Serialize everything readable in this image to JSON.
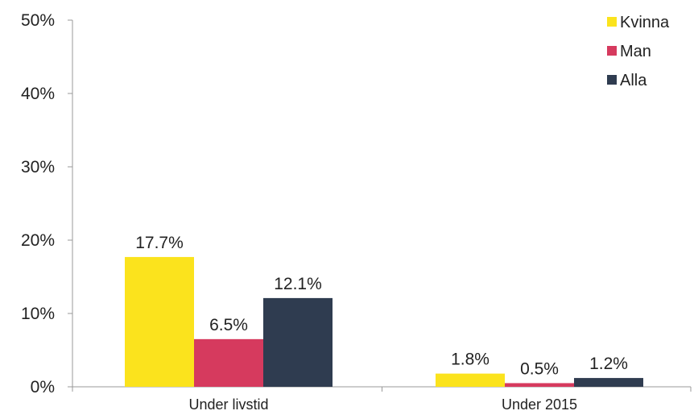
{
  "chart_data": {
    "type": "bar",
    "categories": [
      "Under livstid",
      "Under 2015"
    ],
    "series": [
      {
        "name": "Kvinna",
        "values": [
          17.7,
          1.8
        ],
        "labels": [
          "17.7%",
          "1.8%"
        ],
        "color": "#fbe31d"
      },
      {
        "name": "Man",
        "values": [
          6.5,
          0.5
        ],
        "labels": [
          "6.5%",
          "0.5%"
        ],
        "color": "#d63a5e"
      },
      {
        "name": "Alla",
        "values": [
          12.1,
          1.2
        ],
        "labels": [
          "12.1%",
          "1.2%"
        ],
        "color": "#2f3c50"
      }
    ],
    "yticks": [
      "0%",
      "10%",
      "20%",
      "30%",
      "40%",
      "50%"
    ],
    "ytick_values": [
      0,
      10,
      20,
      30,
      40,
      50
    ],
    "ylim": [
      0,
      50
    ],
    "grid": false,
    "legend_position": "top-right"
  }
}
